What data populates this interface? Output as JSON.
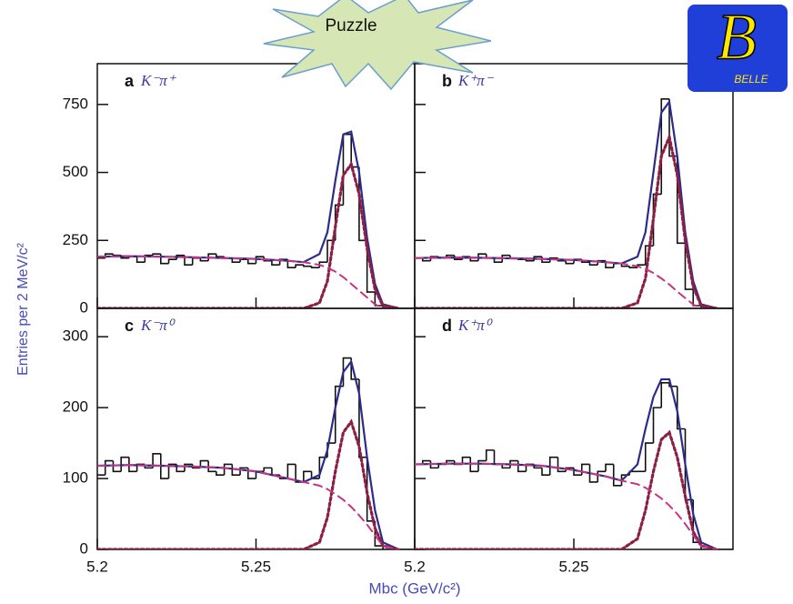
{
  "badge": "Puzzle",
  "logo": {
    "letter": "B",
    "text": "BELLE"
  },
  "ylabel": "Entries per 2 MeV/c²",
  "xlabel": "Mbc (GeV/c²)",
  "chart_data": [
    {
      "type": "histogram",
      "label": "a",
      "title": "K⁻π⁺",
      "xlim": [
        5.2,
        5.3
      ],
      "ylim": [
        0,
        900
      ],
      "yticks": [
        0,
        250,
        500,
        750
      ],
      "bins": [
        5.2,
        5.2025,
        5.205,
        5.2075,
        5.21,
        5.2125,
        5.215,
        5.2175,
        5.22,
        5.2225,
        5.225,
        5.2275,
        5.23,
        5.2325,
        5.235,
        5.2375,
        5.24,
        5.2425,
        5.245,
        5.2475,
        5.25,
        5.2525,
        5.255,
        5.2575,
        5.26,
        5.2625,
        5.265,
        5.2675,
        5.27,
        5.2725,
        5.275,
        5.2775,
        5.28,
        5.2825,
        5.285,
        5.2875,
        5.29,
        5.2925,
        5.295,
        5.2975,
        5.3
      ],
      "counts": [
        185,
        200,
        195,
        185,
        190,
        170,
        195,
        200,
        165,
        180,
        195,
        160,
        185,
        175,
        200,
        190,
        185,
        170,
        180,
        165,
        190,
        175,
        160,
        180,
        150,
        160,
        155,
        150,
        170,
        250,
        380,
        640,
        520,
        250,
        60,
        10,
        0,
        0,
        0,
        0
      ],
      "color": "#111111",
      "fit_x": [
        5.2,
        5.21,
        5.22,
        5.23,
        5.24,
        5.25,
        5.26,
        5.265,
        5.27,
        5.2725,
        5.275,
        5.2775,
        5.28,
        5.2825,
        5.285,
        5.2875,
        5.29,
        5.295
      ],
      "series": [
        {
          "color": "#2b2b8c",
          "style": "solid",
          "values": [
            190,
            192,
            190,
            188,
            185,
            182,
            175,
            170,
            200,
            280,
            470,
            640,
            650,
            500,
            260,
            90,
            15,
            0
          ]
        },
        {
          "color": "#8b1f45",
          "style": "dotted",
          "values": [
            0,
            0,
            0,
            0,
            0,
            0,
            0,
            0,
            20,
            100,
            300,
            490,
            530,
            420,
            220,
            70,
            10,
            0
          ]
        },
        {
          "color": "#c8347f",
          "style": "dashed",
          "values": [
            190,
            192,
            190,
            188,
            185,
            182,
            175,
            170,
            160,
            150,
            135,
            115,
            90,
            65,
            40,
            15,
            0,
            0
          ]
        }
      ]
    },
    {
      "type": "histogram",
      "label": "b",
      "title": "K⁺π⁻",
      "xlim": [
        5.2,
        5.3
      ],
      "ylim": [
        0,
        900
      ],
      "bins": [
        5.2,
        5.2025,
        5.205,
        5.2075,
        5.21,
        5.2125,
        5.215,
        5.2175,
        5.22,
        5.2225,
        5.225,
        5.2275,
        5.23,
        5.2325,
        5.235,
        5.2375,
        5.24,
        5.2425,
        5.245,
        5.2475,
        5.25,
        5.2525,
        5.255,
        5.2575,
        5.26,
        5.2625,
        5.265,
        5.2675,
        5.27,
        5.2725,
        5.275,
        5.2775,
        5.28,
        5.2825,
        5.285,
        5.2875,
        5.29,
        5.2925,
        5.295,
        5.2975,
        5.3
      ],
      "counts": [
        185,
        175,
        190,
        185,
        195,
        180,
        190,
        175,
        200,
        185,
        170,
        195,
        185,
        180,
        175,
        190,
        170,
        185,
        175,
        165,
        180,
        170,
        160,
        175,
        150,
        165,
        155,
        150,
        160,
        230,
        420,
        770,
        560,
        240,
        70,
        10,
        0,
        0,
        0,
        0
      ],
      "color": "#111111",
      "fit_x": [
        5.2,
        5.21,
        5.22,
        5.23,
        5.24,
        5.25,
        5.26,
        5.265,
        5.27,
        5.2725,
        5.275,
        5.2775,
        5.28,
        5.2825,
        5.285,
        5.2875,
        5.29,
        5.295
      ],
      "series": [
        {
          "color": "#2b2b8c",
          "style": "solid",
          "values": [
            185,
            187,
            186,
            184,
            182,
            178,
            170,
            165,
            190,
            280,
            500,
            720,
            760,
            560,
            280,
            100,
            15,
            0
          ]
        },
        {
          "color": "#8b1f45",
          "style": "dotted",
          "values": [
            0,
            0,
            0,
            0,
            0,
            0,
            0,
            0,
            20,
            110,
            330,
            560,
            630,
            490,
            250,
            80,
            10,
            0
          ]
        },
        {
          "color": "#c8347f",
          "style": "dashed",
          "values": [
            185,
            187,
            186,
            184,
            182,
            178,
            170,
            165,
            155,
            145,
            130,
            110,
            88,
            62,
            38,
            14,
            0,
            0
          ]
        }
      ]
    },
    {
      "type": "histogram",
      "label": "c",
      "title": "K⁻π⁰",
      "xlim": [
        5.2,
        5.3
      ],
      "ylim": [
        0,
        340
      ],
      "yticks": [
        0,
        100,
        200,
        300
      ],
      "xticks": [
        5.2,
        5.25
      ],
      "bins": [
        5.2,
        5.2025,
        5.205,
        5.2075,
        5.21,
        5.2125,
        5.215,
        5.2175,
        5.22,
        5.2225,
        5.225,
        5.2275,
        5.23,
        5.2325,
        5.235,
        5.2375,
        5.24,
        5.2425,
        5.245,
        5.2475,
        5.25,
        5.2525,
        5.255,
        5.2575,
        5.26,
        5.2625,
        5.265,
        5.2675,
        5.27,
        5.2725,
        5.275,
        5.2775,
        5.28,
        5.2825,
        5.285,
        5.2875,
        5.29,
        5.2925,
        5.295,
        5.2975,
        5.3
      ],
      "counts": [
        105,
        125,
        110,
        130,
        110,
        120,
        115,
        135,
        100,
        120,
        110,
        120,
        115,
        125,
        110,
        105,
        120,
        105,
        115,
        100,
        110,
        115,
        105,
        100,
        120,
        95,
        110,
        100,
        130,
        150,
        230,
        270,
        240,
        130,
        40,
        5,
        0,
        0,
        0,
        0
      ],
      "color": "#111111",
      "fit_x": [
        5.2,
        5.21,
        5.22,
        5.23,
        5.24,
        5.25,
        5.26,
        5.265,
        5.27,
        5.2725,
        5.275,
        5.2775,
        5.28,
        5.2825,
        5.285,
        5.2875,
        5.29,
        5.295
      ],
      "series": [
        {
          "color": "#2b2b8c",
          "style": "solid",
          "values": [
            118,
            119,
            118,
            117,
            115,
            110,
            100,
            95,
            105,
            140,
            200,
            250,
            265,
            220,
            130,
            55,
            10,
            0
          ]
        },
        {
          "color": "#8b1f45",
          "style": "dotted",
          "values": [
            0,
            0,
            0,
            0,
            0,
            0,
            0,
            0,
            10,
            45,
            110,
            165,
            180,
            145,
            80,
            30,
            5,
            0
          ]
        },
        {
          "color": "#c8347f",
          "style": "dashed",
          "values": [
            118,
            119,
            118,
            117,
            115,
            110,
            100,
            95,
            90,
            85,
            78,
            70,
            60,
            48,
            35,
            20,
            5,
            0
          ]
        }
      ]
    },
    {
      "type": "histogram",
      "label": "d",
      "title": "K⁺π⁰",
      "xlim": [
        5.2,
        5.3
      ],
      "ylim": [
        0,
        340
      ],
      "xticks": [
        5.2,
        5.25
      ],
      "bins": [
        5.2,
        5.2025,
        5.205,
        5.2075,
        5.21,
        5.2125,
        5.215,
        5.2175,
        5.22,
        5.2225,
        5.225,
        5.2275,
        5.23,
        5.2325,
        5.235,
        5.2375,
        5.24,
        5.2425,
        5.245,
        5.2475,
        5.25,
        5.2525,
        5.255,
        5.2575,
        5.26,
        5.2625,
        5.265,
        5.2675,
        5.27,
        5.2725,
        5.275,
        5.2775,
        5.28,
        5.2825,
        5.285,
        5.2875,
        5.29,
        5.2925,
        5.295,
        5.2975,
        5.3
      ],
      "counts": [
        120,
        125,
        115,
        120,
        125,
        120,
        130,
        110,
        125,
        140,
        120,
        115,
        125,
        110,
        120,
        115,
        105,
        130,
        110,
        115,
        105,
        120,
        95,
        110,
        120,
        90,
        105,
        110,
        110,
        150,
        200,
        235,
        230,
        170,
        70,
        10,
        0,
        0,
        0,
        0
      ],
      "color": "#111111",
      "fit_x": [
        5.2,
        5.21,
        5.22,
        5.23,
        5.24,
        5.25,
        5.26,
        5.265,
        5.27,
        5.2725,
        5.275,
        5.2775,
        5.28,
        5.2825,
        5.285,
        5.2875,
        5.29,
        5.295
      ],
      "series": [
        {
          "color": "#2b2b8c",
          "style": "solid",
          "values": [
            120,
            121,
            121,
            120,
            118,
            112,
            103,
            97,
            120,
            170,
            215,
            240,
            240,
            195,
            120,
            50,
            10,
            0
          ]
        },
        {
          "color": "#8b1f45",
          "style": "dotted",
          "values": [
            0,
            0,
            0,
            0,
            0,
            0,
            0,
            0,
            15,
            55,
            110,
            155,
            165,
            130,
            75,
            25,
            5,
            0
          ]
        },
        {
          "color": "#c8347f",
          "style": "dashed",
          "values": [
            120,
            121,
            121,
            120,
            118,
            112,
            103,
            97,
            92,
            87,
            80,
            72,
            62,
            50,
            36,
            20,
            5,
            0
          ]
        }
      ]
    }
  ]
}
